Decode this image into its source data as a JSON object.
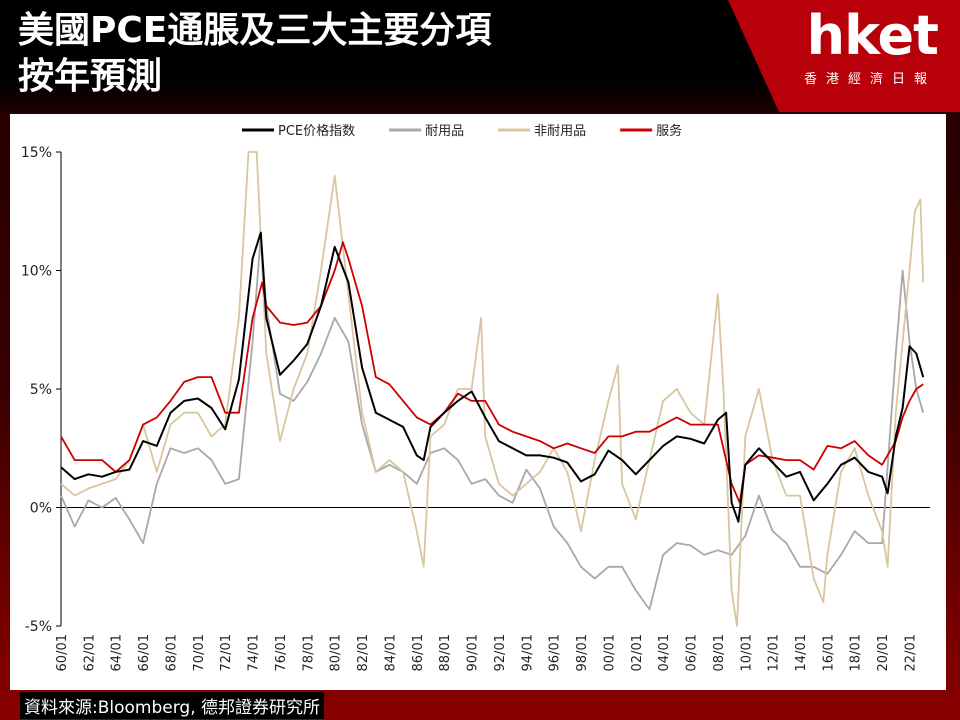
{
  "header": {
    "title_line1": "美國PCE通脹及三大主要分項",
    "title_line2": "按年預測",
    "logo_text": "hket",
    "logo_subtitle": "香港經濟日報"
  },
  "source_note": "資料來源:Bloomberg, 德邦證券研究所",
  "chart_data": {
    "type": "line",
    "title": "",
    "xlabel": "",
    "ylabel": "",
    "ylim": [
      -5,
      15
    ],
    "yticks": [
      15,
      10,
      5,
      0,
      -5
    ],
    "ytick_labels": [
      "15%",
      "10%",
      "5%",
      "0%",
      "-5%"
    ],
    "xlim": [
      1960,
      2023.5
    ],
    "xtick_labels": [
      "60/01",
      "62/01",
      "64/01",
      "66/01",
      "68/01",
      "70/01",
      "72/01",
      "74/01",
      "76/01",
      "78/01",
      "80/01",
      "82/01",
      "84/01",
      "86/01",
      "88/01",
      "90/01",
      "92/01",
      "94/01",
      "96/01",
      "98/01",
      "00/01",
      "02/01",
      "04/01",
      "06/01",
      "08/01",
      "10/01",
      "12/01",
      "14/01",
      "16/01",
      "18/01",
      "20/01",
      "22/01"
    ],
    "grid": false,
    "legend_position": "top",
    "series": [
      {
        "name": "PCE价格指数",
        "color": "#000000",
        "x": [
          1960,
          1961,
          1962,
          1963,
          1964,
          1965,
          1966,
          1967,
          1968,
          1969,
          1970,
          1971,
          1972,
          1973,
          1974,
          1974.6,
          1975,
          1976,
          1977,
          1978,
          1979,
          1980,
          1981,
          1982,
          1983,
          1984,
          1985,
          1986,
          1986.5,
          1987,
          1988,
          1989,
          1990,
          1991,
          1992,
          1993,
          1994,
          1995,
          1996,
          1997,
          1998,
          1999,
          2000,
          2001,
          2002,
          2003,
          2004,
          2005,
          2006,
          2007,
          2008,
          2008.6,
          2009,
          2009.5,
          2010,
          2011,
          2012,
          2013,
          2014,
          2015,
          2016,
          2017,
          2018,
          2019,
          2020,
          2020.4,
          2021,
          2021.5,
          2022,
          2022.5,
          2023
        ],
        "values": [
          1.7,
          1.2,
          1.4,
          1.3,
          1.5,
          1.6,
          2.8,
          2.6,
          4.0,
          4.5,
          4.6,
          4.2,
          3.3,
          5.4,
          10.5,
          11.6,
          8.0,
          5.6,
          6.2,
          6.9,
          8.5,
          11.0,
          9.5,
          5.9,
          4.0,
          3.7,
          3.4,
          2.2,
          2.0,
          3.4,
          4.0,
          4.5,
          4.9,
          3.8,
          2.8,
          2.5,
          2.2,
          2.2,
          2.1,
          1.9,
          1.1,
          1.4,
          2.4,
          2.0,
          1.4,
          2.0,
          2.6,
          3.0,
          2.9,
          2.7,
          3.7,
          4.0,
          0.2,
          -0.6,
          1.8,
          2.5,
          1.9,
          1.3,
          1.5,
          0.3,
          1.0,
          1.8,
          2.1,
          1.5,
          1.3,
          0.6,
          3.0,
          4.2,
          6.8,
          6.5,
          5.5
        ]
      },
      {
        "name": "耐用品",
        "color": "#a8a8a8",
        "x": [
          1960,
          1961,
          1962,
          1963,
          1964,
          1965,
          1966,
          1967,
          1968,
          1969,
          1970,
          1971,
          1972,
          1973,
          1974,
          1974.6,
          1975,
          1976,
          1977,
          1978,
          1979,
          1980,
          1981,
          1982,
          1983,
          1984,
          1985,
          1986,
          1987,
          1988,
          1989,
          1990,
          1991,
          1992,
          1993,
          1994,
          1995,
          1996,
          1997,
          1998,
          1999,
          2000,
          2001,
          2002,
          2003,
          2004,
          2005,
          2006,
          2007,
          2008,
          2009,
          2010,
          2011,
          2012,
          2013,
          2014,
          2015,
          2016,
          2017,
          2018,
          2019,
          2020,
          2021,
          2021.5,
          2022,
          2022.5,
          2023
        ],
        "values": [
          0.5,
          -0.8,
          0.3,
          0.0,
          0.4,
          -0.5,
          -1.5,
          1.0,
          2.5,
          2.3,
          2.5,
          2.0,
          1.0,
          1.2,
          7.0,
          11.5,
          8.5,
          4.8,
          4.5,
          5.3,
          6.5,
          8.0,
          7.0,
          3.5,
          1.5,
          1.8,
          1.5,
          1.0,
          2.3,
          2.5,
          2.0,
          1.0,
          1.2,
          0.5,
          0.2,
          1.6,
          0.8,
          -0.8,
          -1.5,
          -2.5,
          -3.0,
          -2.5,
          -2.5,
          -3.5,
          -4.3,
          -2.0,
          -1.5,
          -1.6,
          -2.0,
          -1.8,
          -2.0,
          -1.2,
          0.5,
          -1.0,
          -1.5,
          -2.5,
          -2.5,
          -2.8,
          -2.0,
          -1.0,
          -1.5,
          -1.5,
          6.5,
          10.0,
          7.0,
          5.0,
          4.0
        ]
      },
      {
        "name": "非耐用品",
        "color": "#d9c6a0",
        "x": [
          1960,
          1961,
          1962,
          1963,
          1964,
          1965,
          1966,
          1967,
          1968,
          1969,
          1970,
          1971,
          1972,
          1973,
          1973.7,
          1974.3,
          1975,
          1976,
          1977,
          1978,
          1979,
          1980,
          1981,
          1982,
          1983,
          1984,
          1985,
          1986,
          1986.5,
          1987,
          1988,
          1989,
          1990,
          1990.7,
          1991,
          1992,
          1993,
          1994,
          1995,
          1996,
          1997,
          1998,
          1999,
          2000,
          2000.7,
          2001,
          2002,
          2003,
          2004,
          2005,
          2006,
          2007,
          2008,
          2008.4,
          2009,
          2009.4,
          2010,
          2011,
          2012,
          2013,
          2014,
          2015,
          2015.7,
          2016,
          2017,
          2018,
          2019,
          2020,
          2020.4,
          2021,
          2022,
          2022.4,
          2022.8,
          2023
        ],
        "values": [
          1.0,
          0.5,
          0.8,
          1.0,
          1.2,
          2.0,
          3.5,
          1.5,
          3.5,
          4.0,
          4.0,
          3.0,
          3.5,
          8.0,
          15.0,
          15.0,
          6.5,
          2.8,
          5.0,
          6.5,
          10.0,
          14.0,
          9.0,
          4.0,
          1.5,
          2.0,
          1.5,
          -1.0,
          -2.5,
          3.0,
          3.5,
          5.0,
          5.0,
          8.0,
          3.0,
          1.0,
          0.5,
          1.0,
          1.5,
          2.5,
          1.5,
          -1.0,
          2.0,
          4.5,
          6.0,
          1.0,
          -0.5,
          2.0,
          4.5,
          5.0,
          4.0,
          3.5,
          9.0,
          5.0,
          -3.5,
          -5.0,
          3.0,
          5.0,
          2.0,
          0.5,
          0.5,
          -3.0,
          -4.0,
          -2.0,
          1.5,
          2.5,
          0.5,
          -1.0,
          -2.5,
          4.0,
          10.0,
          12.5,
          13.0,
          9.5
        ]
      },
      {
        "name": "服务",
        "color": "#cc0000",
        "x": [
          1960,
          1961,
          1962,
          1963,
          1964,
          1965,
          1966,
          1967,
          1968,
          1969,
          1970,
          1971,
          1972,
          1973,
          1974,
          1974.7,
          1975,
          1976,
          1977,
          1978,
          1979,
          1980,
          1980.6,
          1981,
          1982,
          1983,
          1984,
          1985,
          1986,
          1987,
          1988,
          1989,
          1990,
          1991,
          1992,
          1993,
          1994,
          1995,
          1996,
          1997,
          1998,
          1999,
          2000,
          2001,
          2002,
          2003,
          2004,
          2005,
          2006,
          2007,
          2008,
          2009,
          2009.6,
          2010,
          2011,
          2012,
          2013,
          2014,
          2015,
          2016,
          2017,
          2018,
          2019,
          2020,
          2021,
          2021.5,
          2022,
          2022.5,
          2023
        ],
        "values": [
          3.0,
          2.0,
          2.0,
          2.0,
          1.5,
          2.0,
          3.5,
          3.8,
          4.5,
          5.3,
          5.5,
          5.5,
          4.0,
          4.0,
          8.0,
          9.5,
          8.5,
          7.8,
          7.7,
          7.8,
          8.5,
          10.0,
          11.2,
          10.5,
          8.5,
          5.5,
          5.2,
          4.5,
          3.8,
          3.5,
          4.0,
          4.8,
          4.5,
          4.5,
          3.5,
          3.2,
          3.0,
          2.8,
          2.5,
          2.7,
          2.5,
          2.3,
          3.0,
          3.0,
          3.2,
          3.2,
          3.5,
          3.8,
          3.5,
          3.5,
          3.5,
          1.0,
          0.2,
          1.8,
          2.2,
          2.1,
          2.0,
          2.0,
          1.6,
          2.6,
          2.5,
          2.8,
          2.2,
          1.8,
          2.8,
          3.8,
          4.5,
          5.0,
          5.2
        ]
      }
    ]
  }
}
